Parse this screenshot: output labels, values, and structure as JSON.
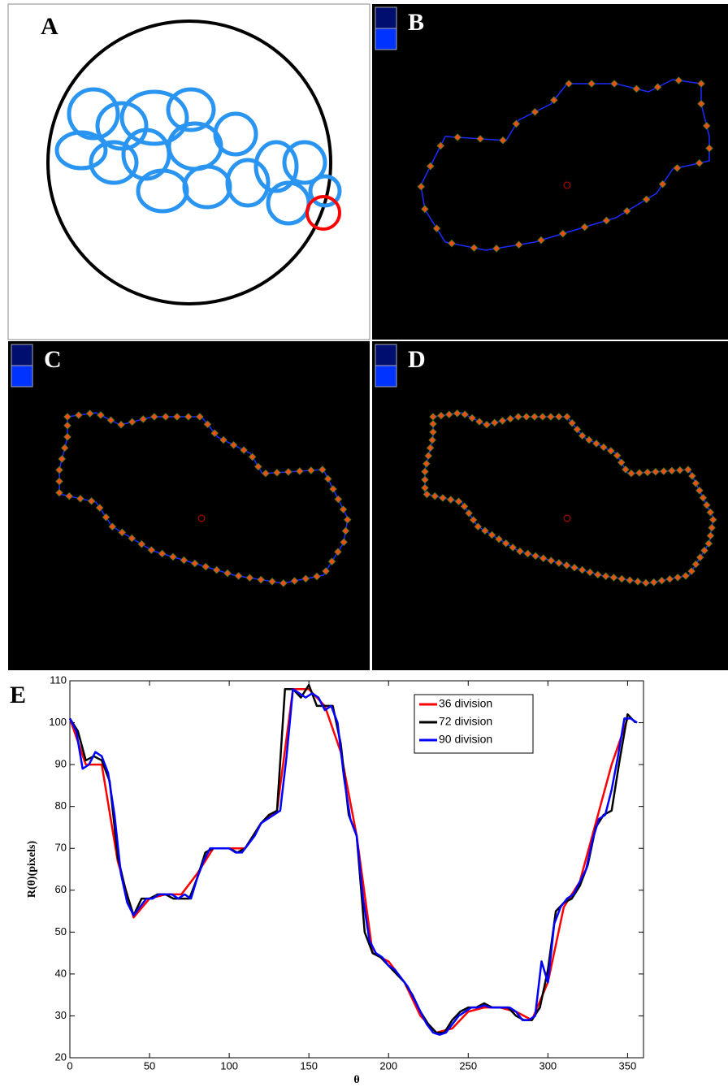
{
  "panel_labels": {
    "a": "A",
    "b": "B",
    "c": "C",
    "d": "D"
  },
  "chart_data": {
    "type": "line",
    "label": "E",
    "x_label": "θ",
    "y_label": "R(θ)(pixels)",
    "xlim": [
      0,
      360
    ],
    "ylim": [
      20,
      110
    ],
    "xticks": [
      0,
      50,
      100,
      150,
      200,
      250,
      300,
      350
    ],
    "yticks": [
      20,
      30,
      40,
      50,
      60,
      70,
      80,
      90,
      100,
      110
    ],
    "grid": false,
    "legend": "upper right",
    "series": [
      {
        "name": "36 division",
        "color": "#ff0000",
        "x": [
          0,
          10,
          20,
          30,
          40,
          50,
          60,
          70,
          80,
          90,
          100,
          110,
          120,
          130,
          140,
          150,
          160,
          170,
          180,
          190,
          200,
          210,
          220,
          230,
          240,
          250,
          260,
          270,
          280,
          290,
          300,
          310,
          320,
          330,
          340,
          350
        ],
        "values": [
          101,
          90,
          90,
          67,
          53.5,
          58,
          59,
          59,
          64,
          70,
          70,
          70,
          76,
          79,
          108,
          108,
          104,
          93,
          73,
          45,
          43,
          38,
          30,
          26,
          27,
          31,
          32,
          32,
          31,
          29,
          38,
          56,
          62,
          76,
          90,
          101
        ]
      },
      {
        "name": "72 division",
        "color": "#000000",
        "x": [
          0,
          5,
          10,
          15,
          20,
          25,
          30,
          35,
          40,
          45,
          50,
          55,
          60,
          65,
          70,
          75,
          80,
          85,
          90,
          95,
          100,
          105,
          110,
          115,
          120,
          125,
          130,
          135,
          140,
          145,
          150,
          155,
          160,
          165,
          170,
          175,
          180,
          185,
          190,
          195,
          200,
          205,
          210,
          215,
          220,
          225,
          230,
          235,
          240,
          245,
          250,
          255,
          260,
          265,
          270,
          275,
          280,
          285,
          290,
          295,
          300,
          305,
          310,
          315,
          320,
          325,
          330,
          335,
          340,
          345,
          350,
          355
        ],
        "values": [
          101,
          98,
          91,
          92,
          91,
          86,
          68,
          60,
          54,
          58,
          58,
          59,
          59,
          58,
          58,
          58,
          63,
          69,
          70,
          70,
          70,
          69,
          70,
          73,
          76,
          78,
          79,
          108,
          108,
          106,
          109,
          104,
          104,
          104,
          95,
          78,
          73,
          50,
          45,
          44,
          42,
          40,
          38,
          35,
          31,
          28,
          26,
          26,
          29,
          31,
          32,
          32,
          33,
          32,
          32,
          32,
          30,
          29,
          29,
          32,
          41,
          55,
          57,
          58,
          61,
          66,
          75,
          78,
          79,
          91,
          102,
          100
        ]
      },
      {
        "name": "90 division",
        "color": "#0000ff",
        "x": [
          0,
          4,
          8,
          12,
          16,
          20,
          24,
          28,
          32,
          36,
          40,
          44,
          48,
          52,
          56,
          60,
          64,
          68,
          72,
          76,
          80,
          84,
          88,
          92,
          96,
          100,
          104,
          108,
          112,
          116,
          120,
          124,
          128,
          132,
          136,
          140,
          144,
          148,
          152,
          156,
          160,
          164,
          168,
          172,
          176,
          180,
          184,
          188,
          192,
          196,
          200,
          204,
          208,
          212,
          216,
          220,
          224,
          228,
          232,
          236,
          240,
          244,
          248,
          252,
          256,
          260,
          264,
          268,
          272,
          276,
          280,
          284,
          288,
          292,
          296,
          300,
          304,
          308,
          312,
          316,
          320,
          324,
          328,
          332,
          336,
          340,
          344,
          348,
          352,
          356
        ],
        "values": [
          101,
          98,
          89,
          90,
          93,
          92,
          88,
          78,
          64,
          57,
          54,
          56,
          58,
          58,
          59,
          59,
          59,
          58,
          59,
          58,
          63,
          67,
          70,
          70,
          70,
          70,
          69,
          69,
          71,
          73,
          76,
          77,
          78,
          79,
          92,
          108,
          107,
          106,
          107,
          106,
          103,
          104,
          100,
          87,
          77,
          73,
          58,
          48,
          45,
          44,
          42,
          41,
          39,
          37,
          34,
          31,
          28,
          26,
          25.5,
          26,
          28,
          30,
          31,
          32,
          32,
          32.5,
          32,
          32,
          32,
          32,
          31,
          29,
          29,
          30,
          43,
          38,
          52,
          56,
          58,
          59,
          62,
          65,
          72,
          77,
          78,
          84,
          92,
          101,
          101,
          100
        ]
      }
    ]
  }
}
